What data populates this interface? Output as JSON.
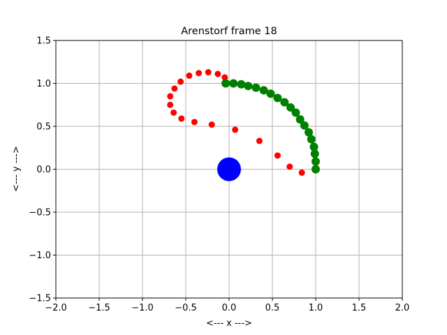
{
  "chart_data": {
    "type": "scatter",
    "title": "Arenstorf frame 18",
    "xlabel": "<---  x  --->",
    "ylabel": "<---  y  --->",
    "xlim": [
      -2.0,
      2.0
    ],
    "ylim": [
      -1.5,
      1.5
    ],
    "grid": true,
    "x_ticks": [
      -2.0,
      -1.5,
      -1.0,
      -0.5,
      0.0,
      0.5,
      1.0,
      1.5,
      2.0
    ],
    "y_ticks": [
      -1.5,
      -1.0,
      -0.5,
      0.0,
      0.5,
      1.0,
      1.5
    ],
    "x_tick_labels": [
      "−2.0",
      "−1.5",
      "−1.0",
      "−0.5",
      "0.0",
      "0.5",
      "1.0",
      "1.5",
      "2.0"
    ],
    "y_tick_labels": [
      "−1.5",
      "−1.0",
      "−0.5",
      "0.0",
      "0.5",
      "1.0",
      "1.5"
    ],
    "series": [
      {
        "color": "#0000ff",
        "marker_size": "large",
        "points": [
          [
            0.0,
            0.0
          ]
        ]
      },
      {
        "color": "#008000",
        "marker_size": "medium",
        "points": [
          [
            1.0,
            0.0
          ],
          [
            1.0,
            0.09
          ],
          [
            0.99,
            0.18
          ],
          [
            0.98,
            0.26
          ],
          [
            0.95,
            0.35
          ],
          [
            0.92,
            0.43
          ],
          [
            0.87,
            0.51
          ],
          [
            0.82,
            0.58
          ],
          [
            0.77,
            0.66
          ],
          [
            0.71,
            0.72
          ],
          [
            0.64,
            0.78
          ],
          [
            0.56,
            0.83
          ],
          [
            0.48,
            0.88
          ],
          [
            0.4,
            0.92
          ],
          [
            0.31,
            0.95
          ],
          [
            0.22,
            0.97
          ],
          [
            0.14,
            0.99
          ],
          [
            0.05,
            1.0
          ],
          [
            -0.04,
            1.0
          ]
        ]
      },
      {
        "color": "#ff0000",
        "marker_size": "small",
        "points": [
          [
            1.0,
            0.0
          ],
          [
            0.84,
            -0.04
          ],
          [
            0.7,
            0.03
          ],
          [
            0.56,
            0.16
          ],
          [
            0.35,
            0.33
          ],
          [
            0.07,
            0.46
          ],
          [
            -0.2,
            0.52
          ],
          [
            -0.4,
            0.55
          ],
          [
            -0.55,
            0.59
          ],
          [
            -0.64,
            0.66
          ],
          [
            -0.68,
            0.75
          ],
          [
            -0.68,
            0.85
          ],
          [
            -0.63,
            0.94
          ],
          [
            -0.56,
            1.02
          ],
          [
            -0.46,
            1.09
          ],
          [
            -0.35,
            1.12
          ],
          [
            -0.24,
            1.13
          ],
          [
            -0.13,
            1.11
          ],
          [
            -0.05,
            1.07
          ]
        ]
      }
    ]
  }
}
